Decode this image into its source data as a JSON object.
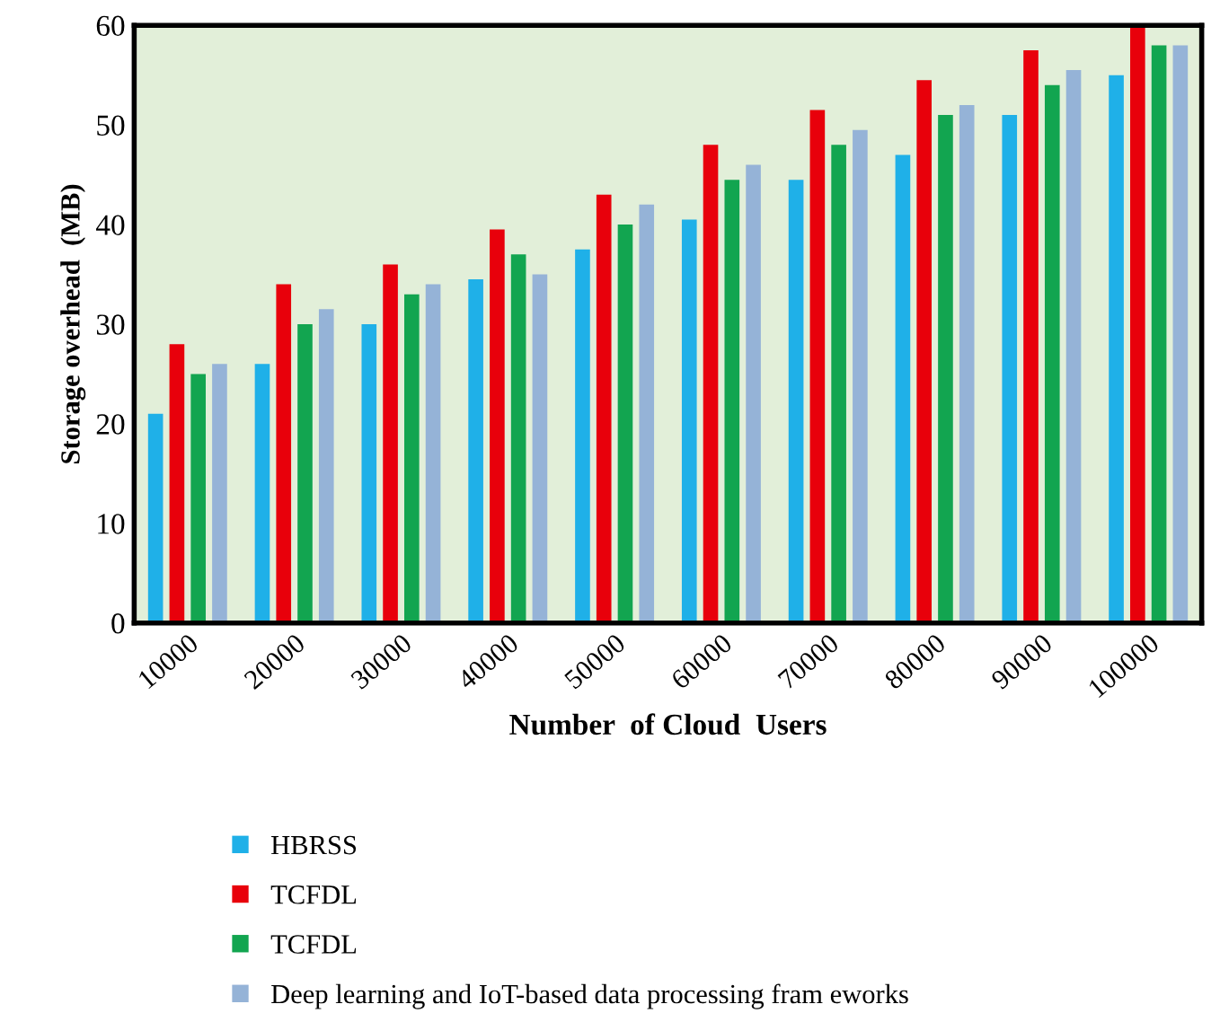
{
  "chart_data": {
    "type": "bar",
    "xlabel": "Number  of Cloud  Users",
    "ylabel": "Storage overhead  (MB)",
    "categories": [
      "10000",
      "20000",
      "30000",
      "40000",
      "50000",
      "60000",
      "70000",
      "80000",
      "90000",
      "100000"
    ],
    "series": [
      {
        "name": "HBRSS",
        "color": "#1fb0e8",
        "values": [
          21,
          26,
          30,
          34.5,
          37.5,
          40.5,
          44.5,
          47,
          51,
          55
        ]
      },
      {
        "name": "TCFDL",
        "color": "#e8000b",
        "values": [
          28,
          34,
          36,
          39.5,
          43,
          48,
          51.5,
          54.5,
          57.5,
          60
        ]
      },
      {
        "name": "TCFDL",
        "color": "#12a550",
        "values": [
          25,
          30,
          33,
          37,
          40,
          44.5,
          48,
          51,
          54,
          58
        ]
      },
      {
        "name": "Deep learning and IoT-based data processing fram eworks",
        "color": "#95b3d7",
        "values": [
          26,
          31.5,
          34,
          35,
          42,
          46,
          49.5,
          52,
          55.5,
          58
        ]
      }
    ],
    "ylim": [
      0,
      60
    ],
    "yticks": [
      0,
      10,
      20,
      30,
      40,
      50,
      60
    ],
    "grid": false,
    "legend": "bottom"
  }
}
